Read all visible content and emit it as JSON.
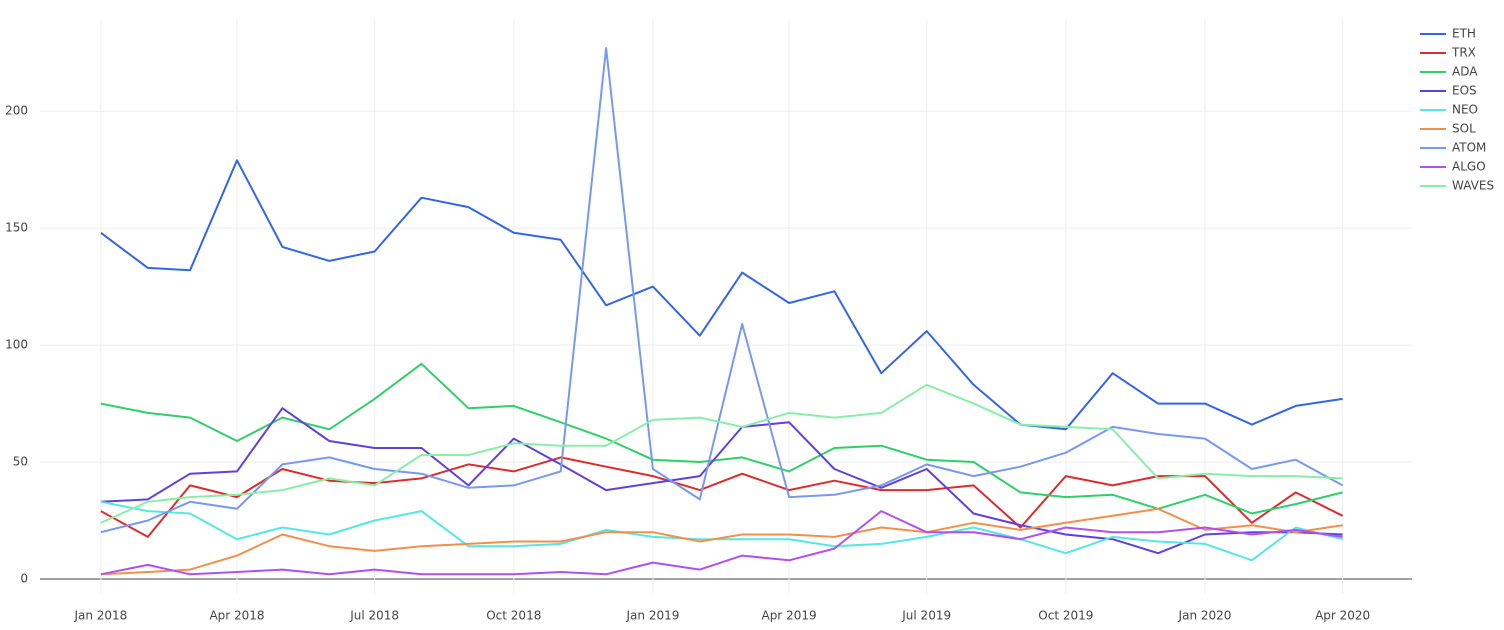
{
  "chart_data": {
    "type": "line",
    "x": [
      "2018-01",
      "2018-02",
      "2018-03",
      "2018-04",
      "2018-05",
      "2018-06",
      "2018-07",
      "2018-08",
      "2018-09",
      "2018-10",
      "2018-11",
      "2018-12",
      "2019-01",
      "2019-02",
      "2019-03",
      "2019-04",
      "2019-05",
      "2019-06",
      "2019-07",
      "2019-08",
      "2019-09",
      "2019-10",
      "2019-11",
      "2019-12",
      "2020-01",
      "2020-02",
      "2020-03",
      "2020-04"
    ],
    "series": [
      {
        "name": "ETH",
        "color": "#3366e6",
        "values": [
          148,
          133,
          132,
          179,
          142,
          136,
          140,
          163,
          159,
          148,
          145,
          117,
          125,
          104,
          131,
          118,
          123,
          88,
          106,
          83,
          66,
          64,
          88,
          75,
          75,
          66,
          74,
          77
        ]
      },
      {
        "name": "TRX",
        "color": "#dc2c2c",
        "values": [
          29,
          18,
          40,
          35,
          47,
          42,
          41,
          43,
          49,
          46,
          52,
          48,
          44,
          38,
          45,
          38,
          42,
          38,
          38,
          40,
          22,
          44,
          40,
          44,
          44,
          24,
          37,
          27
        ]
      },
      {
        "name": "ADA",
        "color": "#2fcf6a",
        "values": [
          75,
          71,
          69,
          59,
          69,
          64,
          77,
          92,
          73,
          74,
          67,
          60,
          51,
          50,
          52,
          46,
          56,
          57,
          51,
          50,
          37,
          35,
          36,
          30,
          36,
          28,
          32,
          37
        ]
      },
      {
        "name": "EOS",
        "color": "#6040e0",
        "values": [
          33,
          34,
          45,
          46,
          73,
          59,
          56,
          56,
          40,
          60,
          49,
          38,
          41,
          44,
          65,
          67,
          47,
          39,
          47,
          28,
          23,
          19,
          17,
          11,
          19,
          20,
          20,
          19
        ]
      },
      {
        "name": "NEO",
        "color": "#55e6e6",
        "values": [
          33,
          29,
          28,
          17,
          22,
          19,
          25,
          29,
          14,
          14,
          15,
          21,
          18,
          17,
          17,
          17,
          14,
          15,
          18,
          22,
          17,
          11,
          18,
          16,
          15,
          8,
          22,
          17
        ]
      },
      {
        "name": "SOL",
        "color": "#f0904a",
        "values": [
          2,
          3,
          4,
          10,
          19,
          14,
          12,
          14,
          15,
          16,
          16,
          20,
          20,
          16,
          19,
          19,
          18,
          22,
          20,
          24,
          21,
          24,
          27,
          30,
          21,
          23,
          20,
          23
        ]
      },
      {
        "name": "ATOM",
        "color": "#7799ee",
        "values": [
          20,
          25,
          33,
          30,
          49,
          52,
          47,
          45,
          39,
          40,
          46,
          227,
          47,
          34,
          109,
          35,
          36,
          40,
          49,
          44,
          48,
          54,
          65,
          62,
          60,
          47,
          51,
          40
        ]
      },
      {
        "name": "ALGO",
        "color": "#b050f0",
        "values": [
          2,
          6,
          2,
          3,
          4,
          2,
          4,
          2,
          2,
          2,
          3,
          2,
          7,
          4,
          10,
          8,
          13,
          29,
          20,
          20,
          17,
          22,
          20,
          20,
          22,
          19,
          21,
          18
        ]
      },
      {
        "name": "WAVES",
        "color": "#88eeaa",
        "values": [
          24,
          33,
          35,
          36,
          38,
          43,
          40,
          53,
          53,
          58,
          57,
          57,
          68,
          69,
          65,
          71,
          69,
          71,
          83,
          75,
          66,
          65,
          64,
          43,
          45,
          44,
          44,
          43
        ]
      }
    ],
    "xlim": [
      "2017-12",
      "2020-05"
    ],
    "xticks": [
      {
        "value": "2018-01",
        "label": "Jan 2018"
      },
      {
        "value": "2018-04",
        "label": "Apr 2018"
      },
      {
        "value": "2018-07",
        "label": "Jul 2018"
      },
      {
        "value": "2018-10",
        "label": "Oct 2018"
      },
      {
        "value": "2019-01",
        "label": "Jan 2019"
      },
      {
        "value": "2019-04",
        "label": "Apr 2019"
      },
      {
        "value": "2019-07",
        "label": "Jul 2019"
      },
      {
        "value": "2019-10",
        "label": "Oct 2019"
      },
      {
        "value": "2020-01",
        "label": "Jan 2020"
      },
      {
        "value": "2020-04",
        "label": "Apr 2020"
      }
    ],
    "ylim": [
      -6,
      239
    ],
    "yticks": [
      0,
      50,
      100,
      150,
      200
    ],
    "grid": true,
    "legend": "top-right"
  }
}
